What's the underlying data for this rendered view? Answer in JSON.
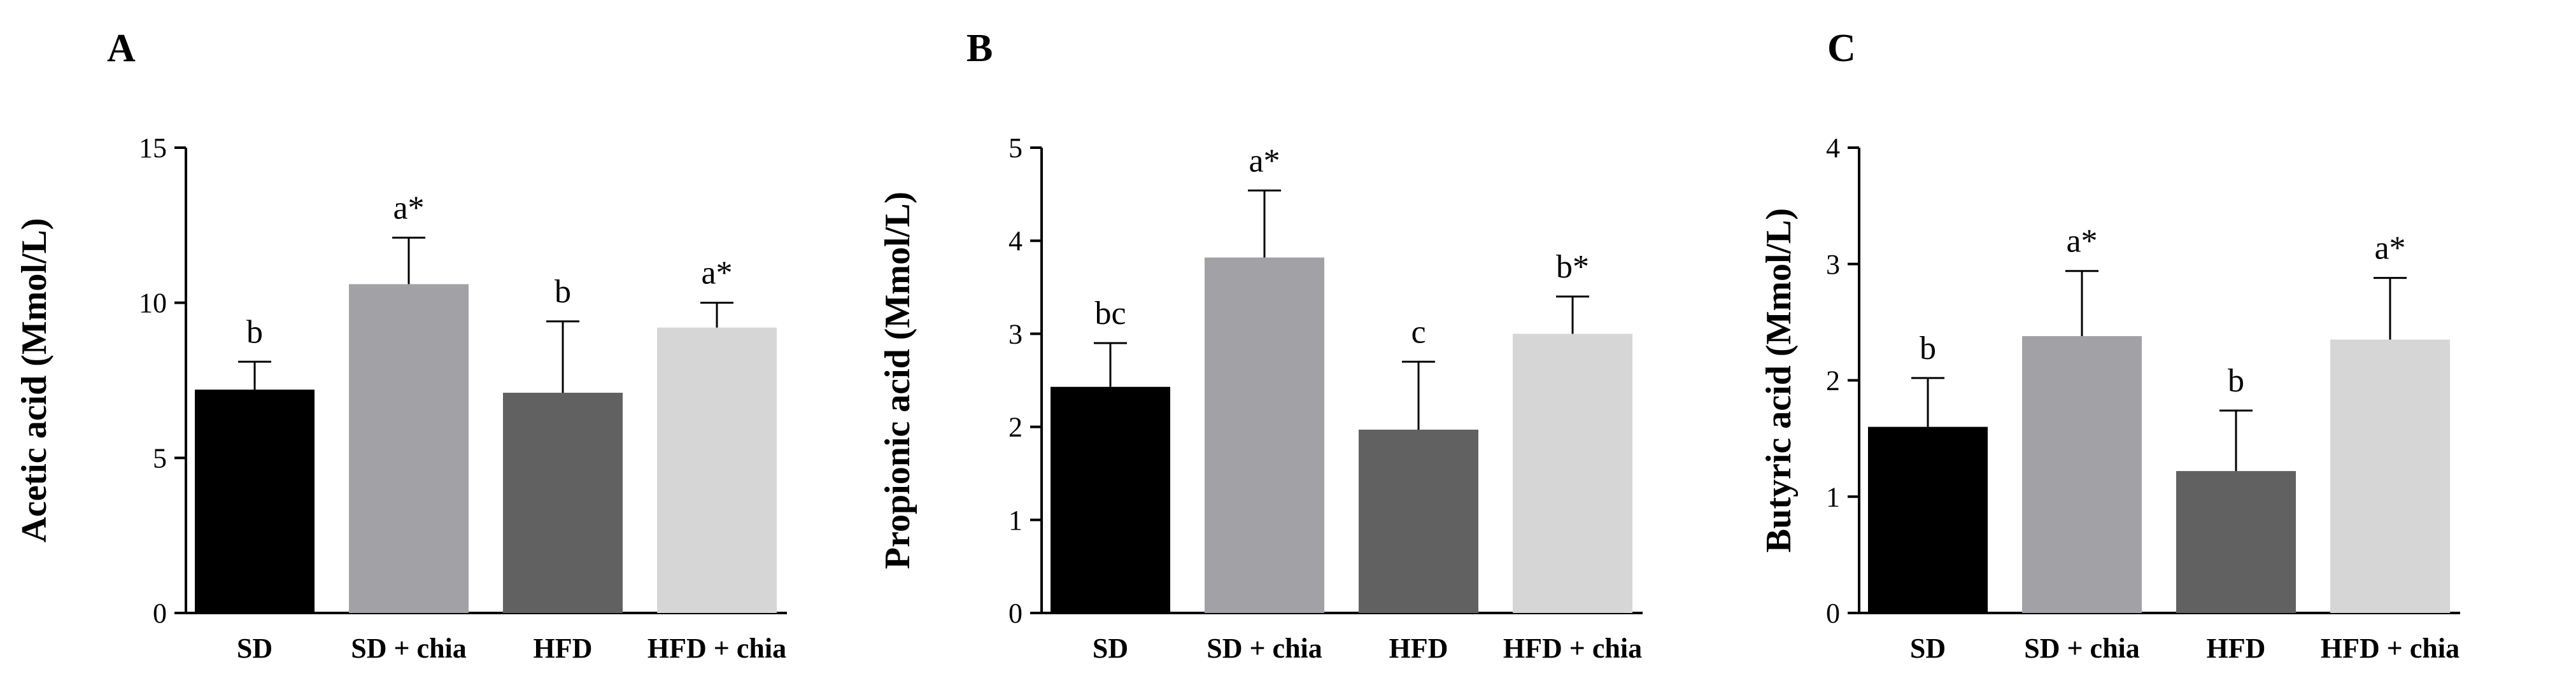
{
  "chart_data": [
    {
      "type": "bar",
      "panel": "A",
      "ylabel": "Acetic acid (Mmol/L)",
      "categories": [
        "SD",
        "SD + chia",
        "HFD",
        "HFD + chia"
      ],
      "values": [
        7.2,
        10.6,
        7.1,
        9.2
      ],
      "errors": [
        0.9,
        1.5,
        2.3,
        0.8
      ],
      "annotations": [
        "b",
        "a*",
        "b",
        "a*"
      ],
      "colors": [
        "#000000",
        "#a2a1a6",
        "#616161",
        "#d6d6d6"
      ],
      "ylim": [
        0,
        15
      ],
      "yticks": [
        0,
        5,
        10,
        15
      ]
    },
    {
      "type": "bar",
      "panel": "B",
      "ylabel": "Propionic acid (Mmol/L)",
      "categories": [
        "SD",
        "SD + chia",
        "HFD",
        "HFD + chia"
      ],
      "values": [
        2.43,
        3.82,
        1.97,
        3.0
      ],
      "errors": [
        0.47,
        0.72,
        0.73,
        0.4
      ],
      "annotations": [
        "bc",
        "a*",
        "c",
        "b*"
      ],
      "colors": [
        "#000000",
        "#a2a1a6",
        "#616161",
        "#d6d6d6"
      ],
      "ylim": [
        0,
        5
      ],
      "yticks": [
        0,
        1,
        2,
        3,
        4,
        5
      ]
    },
    {
      "type": "bar",
      "panel": "C",
      "ylabel": "Butyric acid (Mmol/L)",
      "categories": [
        "SD",
        "SD + chia",
        "HFD",
        "HFD + chia"
      ],
      "values": [
        1.6,
        2.38,
        1.22,
        2.35
      ],
      "errors": [
        0.42,
        0.56,
        0.52,
        0.53
      ],
      "annotations": [
        "b",
        "a*",
        "b",
        "a*"
      ],
      "colors": [
        "#000000",
        "#a2a1a6",
        "#616161",
        "#d6d6d6"
      ],
      "ylim": [
        0,
        4
      ],
      "yticks": [
        0,
        1,
        2,
        3,
        4
      ]
    }
  ]
}
